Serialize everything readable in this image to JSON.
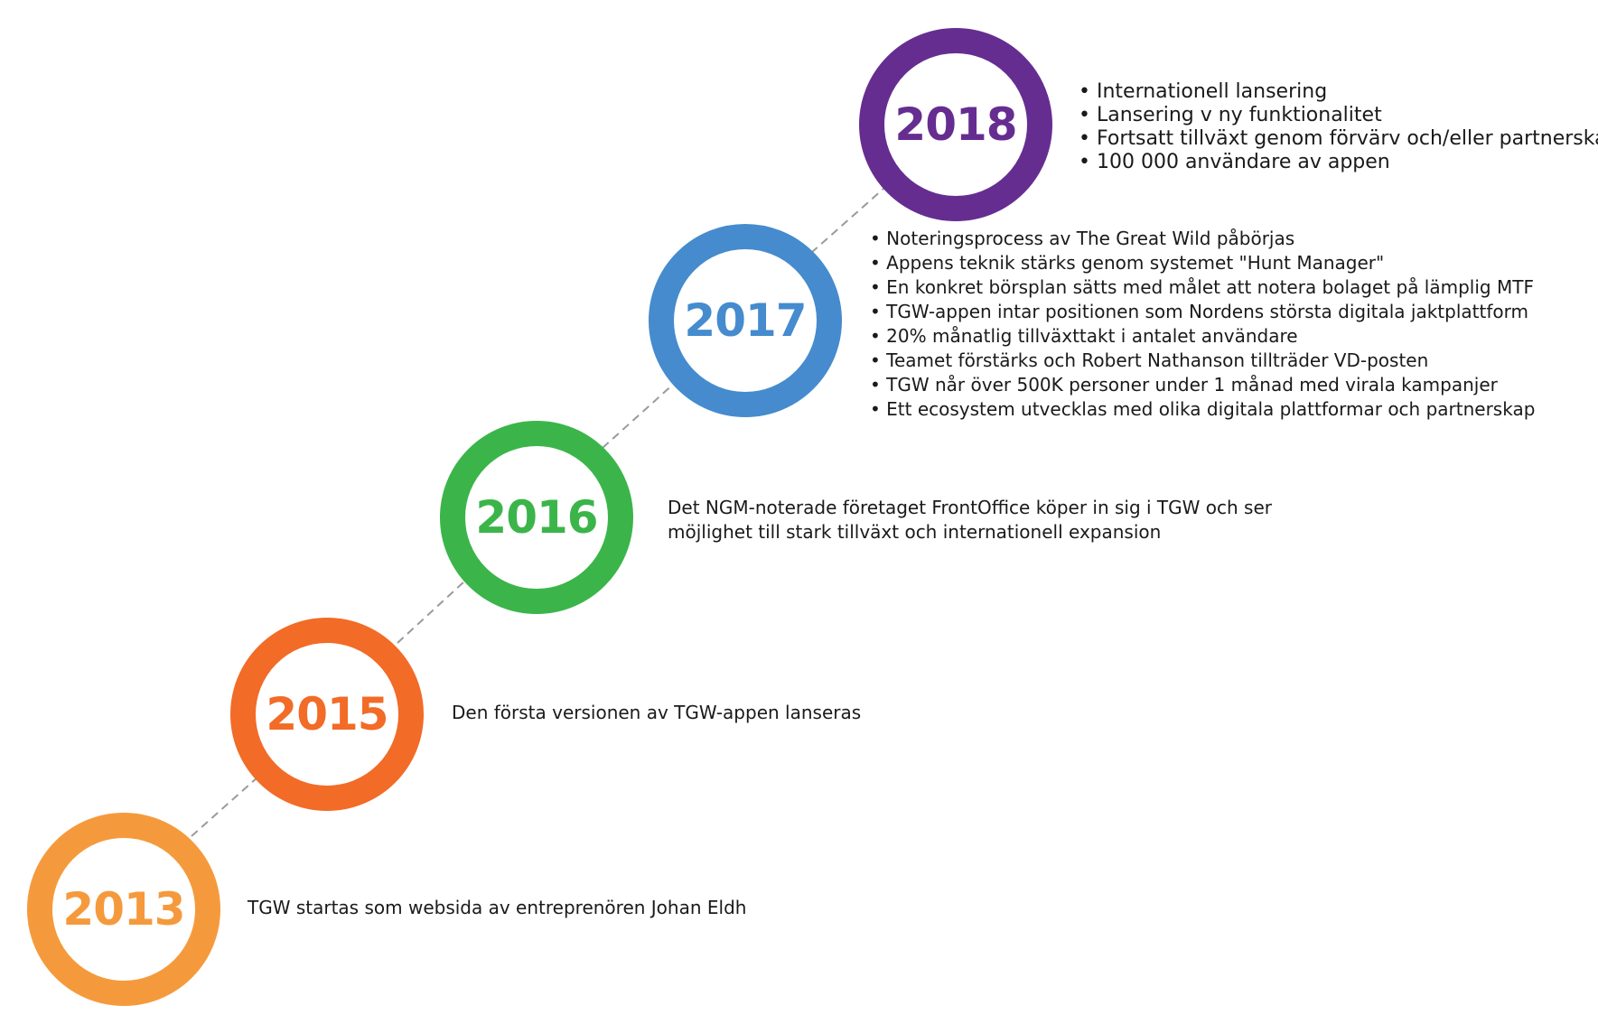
{
  "colors": {
    "y2013": "#f59a3c",
    "y2015": "#f26b27",
    "y2016": "#3bb54a",
    "y2017": "#458bce",
    "y2018": "#662d91",
    "connector": "#9a9a9a",
    "text": "#1a1a1a"
  },
  "timeline": {
    "m2013": {
      "year": "2013",
      "text": "TGW startas som websida av entreprenören Johan Eldh"
    },
    "m2015": {
      "year": "2015",
      "text": "Den första versionen av TGW-appen lanseras"
    },
    "m2016": {
      "year": "2016",
      "text": "Det NGM-noterade företaget FrontOffice köper in sig i TGW och ser möjlighet till stark tillväxt och internationell expansion"
    },
    "m2017": {
      "year": "2017",
      "bullets": [
        "Noteringsprocess av The Great Wild påbörjas",
        "Appens teknik stärks genom systemet \"Hunt Manager\"",
        "En konkret börsplan sätts med målet att notera bolaget på lämplig MTF",
        "TGW-appen intar positionen som Nordens största digitala jaktplattform",
        "20% månatlig tillväxttakt i antalet användare",
        "Teamet förstärks och Robert Nathanson tillträder VD-posten",
        "TGW når över 500K personer under 1 månad med virala kampanjer",
        "Ett ecosystem utvecklas med olika digitala plattformar och partnerskap"
      ]
    },
    "m2018": {
      "year": "2018",
      "bullets": [
        "Internationell lansering",
        "Lansering v ny funktionalitet",
        "Fortsatt tillväxt genom förvärv och/eller partnerskap",
        "100 000 användare av appen"
      ]
    }
  }
}
